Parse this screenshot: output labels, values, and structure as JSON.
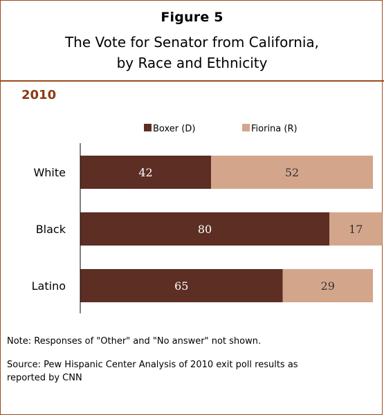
{
  "header": {
    "figure_label": "Figure 5",
    "title_line1": "The Vote for Senator from California,",
    "title_line2": "by Race and Ethnicity"
  },
  "subtitle": "2010",
  "note": "Note: Responses of \"Other\" and \"No answer\" not shown.",
  "source": "Source: Pew Hispanic Center Analysis of 2010 exit poll results as reported by CNN",
  "colors": {
    "boxer": "#5c2e24",
    "fiorina": "#d3a68c",
    "accent": "#9a4a1c"
  },
  "chart_data": {
    "type": "bar",
    "orientation": "horizontal",
    "stacked": true,
    "categories": [
      "White",
      "Black",
      "Latino"
    ],
    "series": [
      {
        "name": "Boxer (D)",
        "values": [
          42,
          80,
          65
        ]
      },
      {
        "name": "Fiorina (R)",
        "values": [
          52,
          17,
          29
        ]
      }
    ],
    "data_labels": true,
    "legend_position": "top",
    "grid": false
  }
}
